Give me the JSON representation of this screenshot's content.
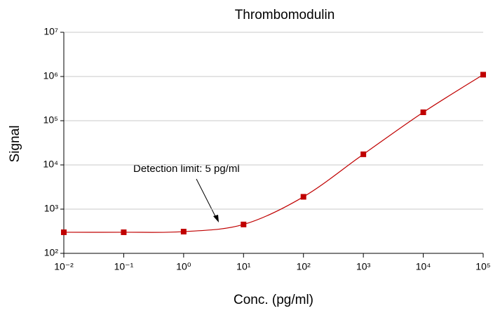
{
  "chart_data": {
    "type": "scatter",
    "title": "Thrombomodulin",
    "x_label": "Conc. (pg/ml)",
    "y_label": "Signal",
    "annotation": "Detection limit: 5 pg/ml",
    "x": [
      0.01,
      0.1,
      1,
      10,
      100,
      1000,
      10000,
      100000
    ],
    "values": [
      300,
      300,
      310,
      450,
      1900,
      17400,
      155000,
      1100000
    ],
    "color": "#c00000",
    "line": true,
    "xscale": "log",
    "yscale": "log",
    "grid": true,
    "xlim": [
      0.01,
      100000
    ],
    "ylim": [
      100,
      10000000
    ],
    "xticks": [
      {
        "value": 0.01,
        "label": "10⁻²"
      },
      {
        "value": 0.1,
        "label": "10⁻¹"
      },
      {
        "value": 1,
        "label": "10⁰"
      },
      {
        "value": 10,
        "label": "10¹"
      },
      {
        "value": 100,
        "label": "10²"
      },
      {
        "value": 1000,
        "label": "10³"
      },
      {
        "value": 10000,
        "label": "10⁴"
      },
      {
        "value": 100000,
        "label": "10⁵"
      }
    ],
    "yticks": [
      {
        "value": 100,
        "label": "10²"
      },
      {
        "value": 1000,
        "label": "10³"
      },
      {
        "value": 10000,
        "label": "10⁴"
      },
      {
        "value": 100000,
        "label": "10⁵"
      },
      {
        "value": 1000000,
        "label": "10⁶"
      },
      {
        "value": 10000000,
        "label": "10⁷"
      }
    ]
  }
}
